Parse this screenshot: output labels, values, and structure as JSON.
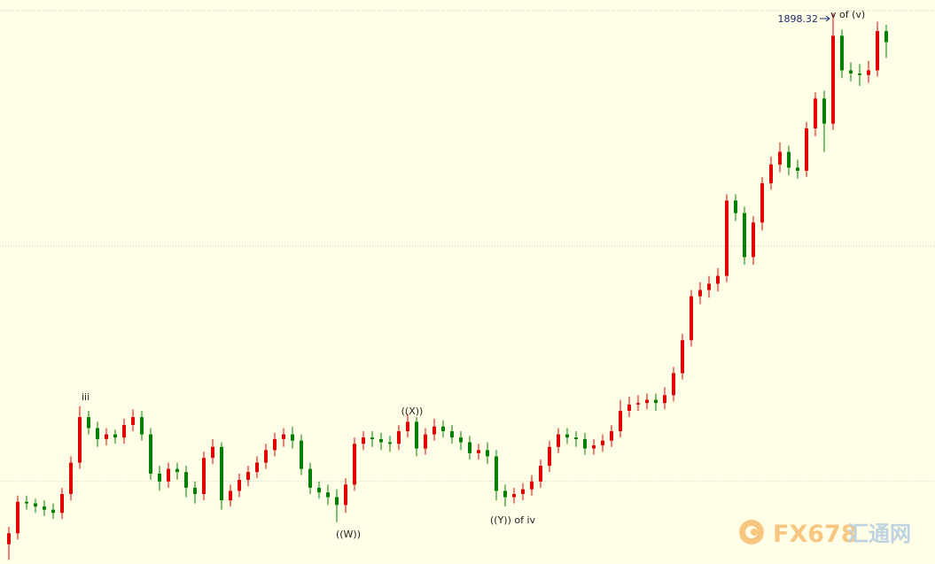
{
  "chart_data": {
    "type": "candlestick",
    "ylim": [
      1547.4,
      1906.8
    ],
    "gridlines": [
      1600,
      1750,
      1900
    ],
    "up_color": "#e00000",
    "down_color": "#008000",
    "open": [
      1560,
      1567,
      1587,
      1586,
      1584,
      1582,
      1580,
      1592,
      1612,
      1641,
      1634,
      1627,
      1630,
      1628,
      1636,
      1641,
      1630,
      1605,
      1600,
      1608,
      1606,
      1596,
      1592,
      1615,
      1622,
      1588,
      1594,
      1601,
      1606,
      1612,
      1620,
      1627,
      1630,
      1626,
      1608,
      1596,
      1593,
      1590,
      1585,
      1598,
      1624,
      1628,
      1627,
      1625,
      1624,
      1632,
      1638,
      1621,
      1630,
      1635,
      1632,
      1628,
      1625,
      1618,
      1620,
      1616,
      1594,
      1590,
      1592,
      1595,
      1600,
      1610,
      1622,
      1630,
      1628,
      1627,
      1621,
      1623,
      1626,
      1632,
      1645,
      1649,
      1650,
      1652,
      1650,
      1655,
      1669,
      1690,
      1718,
      1722,
      1726,
      1731,
      1779,
      1771,
      1743,
      1765,
      1790,
      1802,
      1810,
      1800,
      1798,
      1825,
      1844,
      1828,
      1884,
      1862,
      1860,
      1859,
      1862,
      1887
    ],
    "high": [
      1571,
      1591,
      1591,
      1589,
      1588,
      1586,
      1596,
      1616,
      1648,
      1645,
      1638,
      1634,
      1633,
      1640,
      1646,
      1645,
      1634,
      1610,
      1612,
      1612,
      1610,
      1600,
      1619,
      1627,
      1625,
      1598,
      1605,
      1610,
      1616,
      1624,
      1631,
      1634,
      1635,
      1630,
      1612,
      1600,
      1598,
      1595,
      1602,
      1628,
      1632,
      1632,
      1631,
      1629,
      1636,
      1643,
      1641,
      1634,
      1640,
      1639,
      1636,
      1632,
      1629,
      1624,
      1625,
      1620,
      1598,
      1596,
      1599,
      1604,
      1614,
      1626,
      1634,
      1634,
      1632,
      1631,
      1627,
      1630,
      1636,
      1652,
      1654,
      1655,
      1656,
      1656,
      1660,
      1673,
      1694,
      1722,
      1727,
      1731,
      1736,
      1783,
      1783,
      1775,
      1769,
      1794,
      1807,
      1816,
      1814,
      1805,
      1829,
      1848,
      1849,
      1898.32,
      1888,
      1867,
      1866,
      1868,
      1893,
      1891
    ],
    "low": [
      1550,
      1563,
      1582,
      1580,
      1578,
      1576,
      1576,
      1588,
      1608,
      1630,
      1622,
      1623,
      1624,
      1624,
      1632,
      1626,
      1601,
      1594,
      1596,
      1601,
      1590,
      1586,
      1588,
      1611,
      1582,
      1584,
      1590,
      1597,
      1602,
      1608,
      1616,
      1622,
      1621,
      1604,
      1592,
      1589,
      1585,
      1574,
      1580,
      1594,
      1620,
      1622,
      1620,
      1619,
      1620,
      1628,
      1616,
      1617,
      1626,
      1628,
      1624,
      1620,
      1614,
      1614,
      1611,
      1588,
      1584,
      1586,
      1588,
      1591,
      1596,
      1606,
      1618,
      1624,
      1622,
      1617,
      1617,
      1619,
      1622,
      1628,
      1641,
      1645,
      1646,
      1645,
      1646,
      1651,
      1665,
      1686,
      1713,
      1717,
      1721,
      1727,
      1766,
      1738,
      1738,
      1760,
      1786,
      1797,
      1795,
      1793,
      1794,
      1820,
      1810,
      1824,
      1857,
      1855,
      1852,
      1854,
      1858,
      1870
    ],
    "close": [
      1567,
      1587,
      1586,
      1584,
      1582,
      1580,
      1592,
      1612,
      1641,
      1634,
      1627,
      1630,
      1628,
      1636,
      1641,
      1630,
      1605,
      1600,
      1608,
      1606,
      1596,
      1592,
      1615,
      1622,
      1588,
      1594,
      1601,
      1606,
      1612,
      1620,
      1627,
      1630,
      1626,
      1608,
      1596,
      1593,
      1590,
      1585,
      1598,
      1624,
      1628,
      1627,
      1625,
      1624,
      1632,
      1638,
      1621,
      1630,
      1635,
      1632,
      1628,
      1625,
      1618,
      1620,
      1616,
      1594,
      1590,
      1592,
      1595,
      1600,
      1610,
      1622,
      1630,
      1628,
      1627,
      1621,
      1623,
      1626,
      1632,
      1645,
      1649,
      1650,
      1652,
      1650,
      1655,
      1669,
      1690,
      1718,
      1722,
      1726,
      1731,
      1779,
      1771,
      1743,
      1765,
      1790,
      1802,
      1810,
      1800,
      1798,
      1825,
      1844,
      1828,
      1884,
      1862,
      1860,
      1859,
      1862,
      1887,
      1880
    ],
    "annotations": [
      "iii",
      "((X))",
      "((W))",
      "((Y)) of iv",
      "v of (v)"
    ]
  },
  "watermark": {
    "brand": "FX678",
    "name": "汇通网"
  }
}
